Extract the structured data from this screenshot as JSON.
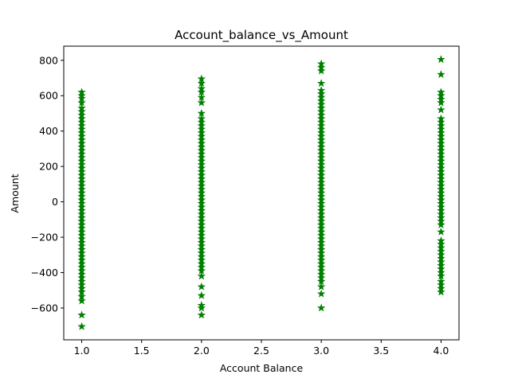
{
  "chart_data": {
    "type": "scatter",
    "title": "Account_balance_vs_Amount",
    "xlabel": "Account Balance",
    "ylabel": "Amount",
    "xlim": [
      0.85,
      4.15
    ],
    "ylim": [
      -780,
      880
    ],
    "xticks": [
      1.0,
      1.5,
      2.0,
      2.5,
      3.0,
      3.5,
      4.0
    ],
    "xtick_labels": [
      "1.0",
      "1.5",
      "2.0",
      "2.5",
      "3.0",
      "3.5",
      "4.0"
    ],
    "yticks": [
      -600,
      -400,
      -200,
      0,
      200,
      400,
      600,
      800
    ],
    "ytick_labels": [
      "−600",
      "−400",
      "−200",
      "0",
      "200",
      "400",
      "600",
      "800"
    ],
    "marker": "star",
    "marker_color": "#008000",
    "grid": false,
    "legend": "none",
    "series": [
      {
        "x": 1.0,
        "y": [
          -705,
          -640,
          -560,
          -535,
          -510,
          -490,
          -470,
          -450,
          -430,
          -410,
          -390,
          -370,
          -350,
          -330,
          -310,
          -290,
          -270,
          -250,
          -230,
          -210,
          -190,
          -170,
          -150,
          -130,
          -110,
          -90,
          -70,
          -50,
          -30,
          -10,
          10,
          30,
          50,
          70,
          90,
          110,
          130,
          150,
          170,
          190,
          210,
          230,
          250,
          270,
          290,
          310,
          330,
          350,
          370,
          390,
          410,
          430,
          450,
          470,
          490,
          510,
          530,
          560,
          585,
          600,
          620
        ]
      },
      {
        "x": 2.0,
        "y": [
          -640,
          -600,
          -585,
          -530,
          -480,
          -420,
          -390,
          -370,
          -350,
          -330,
          -310,
          -290,
          -270,
          -250,
          -230,
          -210,
          -190,
          -170,
          -150,
          -130,
          -110,
          -90,
          -70,
          -50,
          -30,
          -10,
          10,
          30,
          50,
          70,
          90,
          110,
          130,
          150,
          170,
          190,
          210,
          230,
          250,
          270,
          290,
          310,
          330,
          350,
          370,
          390,
          410,
          430,
          450,
          470,
          500,
          560,
          590,
          620,
          640,
          670,
          695
        ]
      },
      {
        "x": 3.0,
        "y": [
          -600,
          -520,
          -480,
          -450,
          -430,
          -410,
          -390,
          -370,
          -350,
          -330,
          -310,
          -290,
          -270,
          -250,
          -230,
          -210,
          -190,
          -170,
          -150,
          -130,
          -110,
          -90,
          -70,
          -50,
          -30,
          -10,
          10,
          30,
          50,
          70,
          90,
          110,
          130,
          150,
          170,
          190,
          210,
          230,
          250,
          270,
          290,
          310,
          330,
          350,
          370,
          390,
          410,
          430,
          450,
          470,
          490,
          510,
          530,
          550,
          570,
          590,
          610,
          630,
          670,
          740,
          760,
          780
        ]
      },
      {
        "x": 4.0,
        "y": [
          -510,
          -490,
          -470,
          -450,
          -420,
          -400,
          -380,
          -360,
          -340,
          -320,
          -300,
          -280,
          -260,
          -240,
          -220,
          -170,
          -130,
          -110,
          -90,
          -70,
          -50,
          -30,
          -10,
          10,
          30,
          50,
          70,
          90,
          110,
          130,
          150,
          170,
          190,
          210,
          230,
          250,
          270,
          290,
          310,
          330,
          350,
          370,
          390,
          410,
          430,
          450,
          470,
          520,
          560,
          580,
          600,
          620,
          720,
          805
        ]
      }
    ]
  }
}
